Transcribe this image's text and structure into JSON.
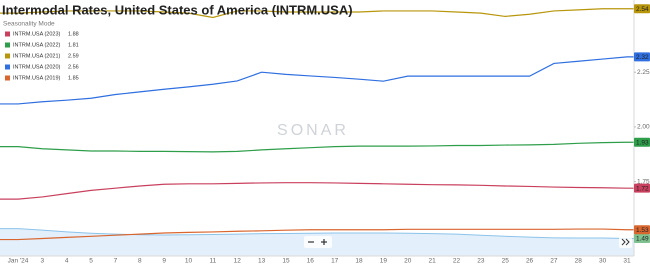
{
  "chart_data": {
    "type": "line",
    "title": "Intermodal Rates, United States of America (INTRM.USA)",
    "subtitle": "Seasonality Mode",
    "watermark": "SONAR",
    "categories": [
      "Jan '24",
      "3",
      "4",
      "5",
      "7",
      "8",
      "9",
      "10",
      "11",
      "12",
      "13",
      "15",
      "16",
      "17",
      "18",
      "19",
      "20",
      "21",
      "22",
      "23",
      "25",
      "26",
      "27",
      "28",
      "30",
      "31"
    ],
    "ylim": [
      1.41,
      2.58
    ],
    "yticks": [
      2.25,
      {
        "value": 2,
        "label": "2.00"
      },
      1.75
    ],
    "grid": false,
    "legend": "top-left",
    "series": [
      {
        "name": "INTRM.USA (2023)",
        "legend_value": "1.88",
        "color": "#c9405e",
        "values": [
          1.67,
          1.68,
          1.695,
          1.71,
          1.72,
          1.73,
          1.738,
          1.74,
          1.74,
          1.742,
          1.744,
          1.745,
          1.745,
          1.744,
          1.742,
          1.74,
          1.738,
          1.736,
          1.735,
          1.733,
          1.73,
          1.728,
          1.725,
          1.723,
          1.722,
          1.72
        ]
      },
      {
        "name": "INTRM.USA (2022)",
        "legend_value": "1.81",
        "color": "#2e9e4a",
        "values": [
          1.91,
          1.9,
          1.895,
          1.89,
          1.89,
          1.888,
          1.888,
          1.887,
          1.886,
          1.888,
          1.895,
          1.9,
          1.905,
          1.91,
          1.912,
          1.912,
          1.912,
          1.913,
          1.915,
          1.915,
          1.917,
          1.918,
          1.92,
          1.925,
          1.928,
          1.93
        ]
      },
      {
        "name": "INTRM.USA (2021)",
        "legend_value": "2.59",
        "color": "#b8960c",
        "values": [
          2.52,
          2.525,
          2.53,
          2.53,
          2.53,
          2.53,
          2.525,
          2.52,
          2.5,
          2.53,
          2.53,
          2.525,
          2.525,
          2.525,
          2.525,
          2.53,
          2.53,
          2.53,
          2.525,
          2.52,
          2.505,
          2.515,
          2.53,
          2.535,
          2.54,
          2.54
        ]
      },
      {
        "name": "INTRM.USA (2020)",
        "legend_value": "2.56",
        "color": "#2f6fe0",
        "values": [
          2.105,
          2.115,
          2.122,
          2.131,
          2.148,
          2.16,
          2.172,
          2.183,
          2.195,
          2.21,
          2.25,
          2.24,
          2.233,
          2.226,
          2.218,
          2.209,
          2.232,
          2.232,
          2.232,
          2.232,
          2.232,
          2.232,
          2.29,
          2.3,
          2.31,
          2.32
        ]
      },
      {
        "name": "INTRM.USA (2019)",
        "legend_value": "1.85",
        "color": "#d9662f",
        "values": [
          1.485,
          1.49,
          1.495,
          1.5,
          1.505,
          1.51,
          1.515,
          1.518,
          1.52,
          1.523,
          1.525,
          1.528,
          1.53,
          1.53,
          1.53,
          1.53,
          1.532,
          1.532,
          1.532,
          1.532,
          1.532,
          1.532,
          1.532,
          1.533,
          1.533,
          1.53
        ]
      }
    ],
    "navigator": {
      "color": "#8cc3ea",
      "fill": "#e3f0fb",
      "tag_color": "#7fc18f",
      "values": [
        1.535,
        1.528,
        1.52,
        1.514,
        1.51,
        1.507,
        1.506,
        1.507,
        1.508,
        1.51,
        1.512,
        1.513,
        1.514,
        1.515,
        1.515,
        1.515,
        1.514,
        1.512,
        1.51,
        1.505,
        1.5,
        1.496,
        1.493,
        1.492,
        1.492,
        1.49
      ]
    }
  }
}
